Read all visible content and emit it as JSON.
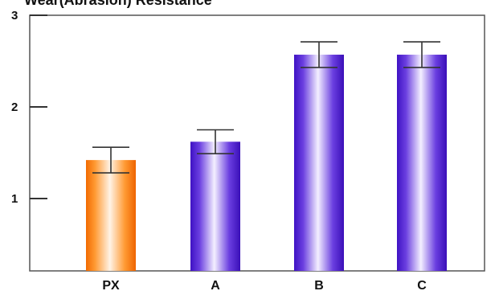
{
  "chart_data": {
    "type": "bar",
    "title": "Wear(Abrasion) Resistance",
    "xlabel": "",
    "ylabel": "",
    "categories": [
      "PX",
      "A",
      "B",
      "C"
    ],
    "values": [
      1.42,
      1.62,
      2.57,
      2.57
    ],
    "error": [
      0.14,
      0.13,
      0.14,
      0.14
    ],
    "ylim": [
      0,
      3
    ],
    "yticks": [
      "1",
      "2",
      "3"
    ],
    "grid": false,
    "legend": "none",
    "colors": {
      "highlight": "#ff7f00",
      "default": "#4a1fc8",
      "frame": "#555555",
      "errorbar": "#333333"
    }
  }
}
